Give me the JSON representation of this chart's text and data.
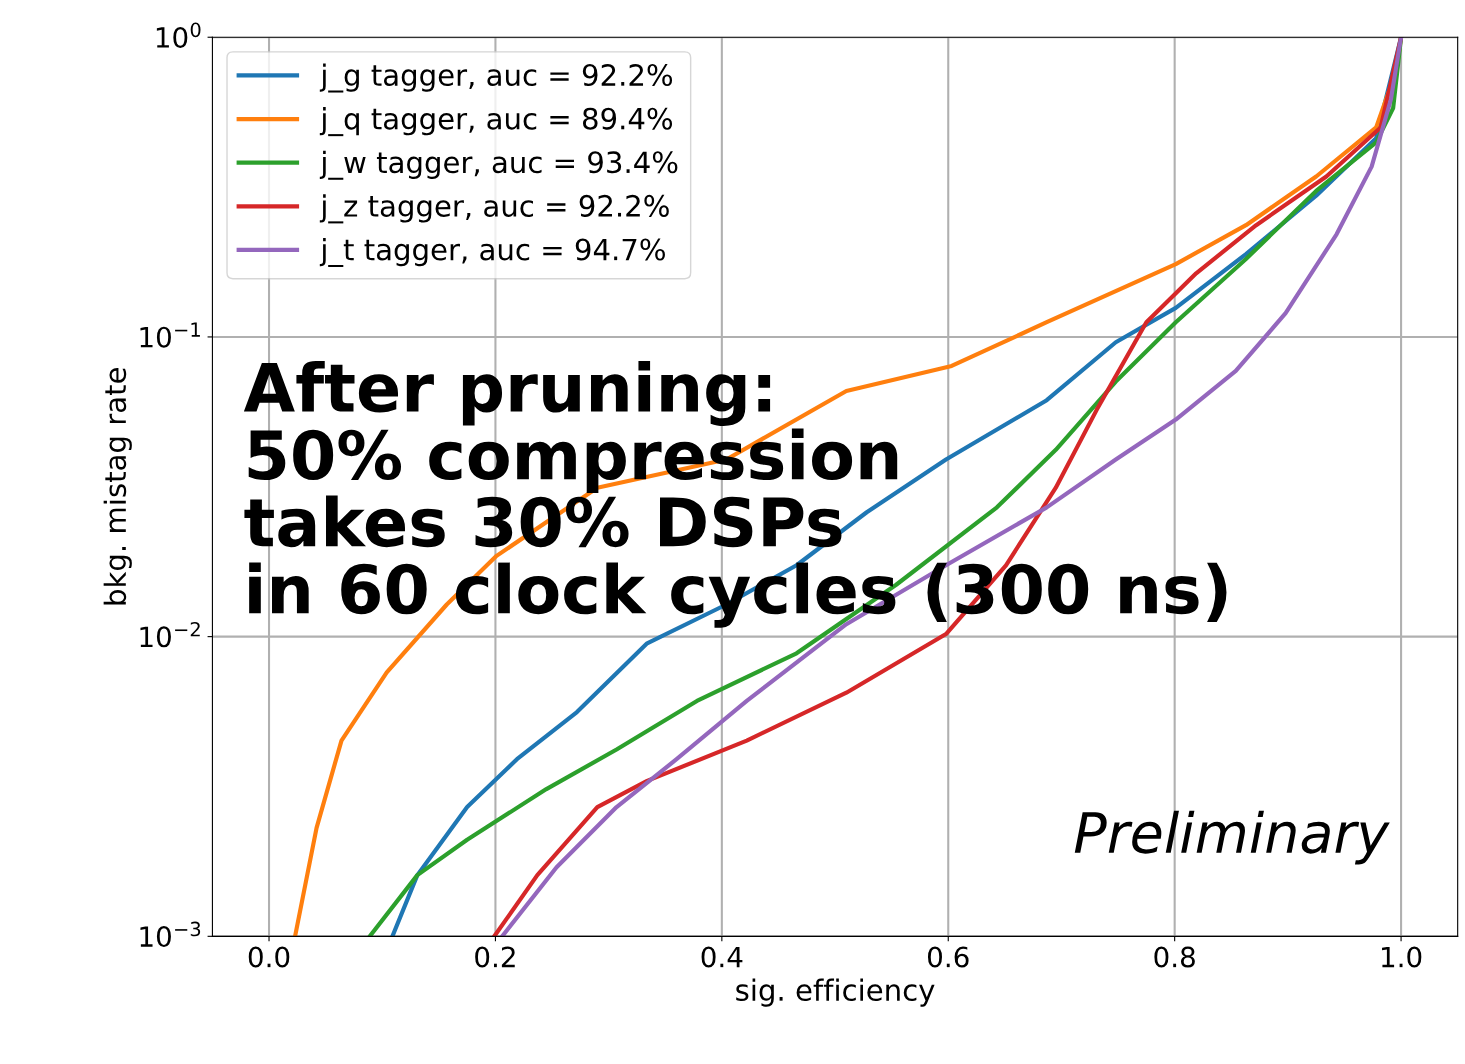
{
  "chart_data": {
    "type": "line",
    "xlabel": "sig. efficiency",
    "ylabel": "bkg. mistag rate",
    "log": "y",
    "xlim": [
      -0.05,
      1.05
    ],
    "xticks": [
      {
        "value": 0.0,
        "label": "0.0"
      },
      {
        "value": 0.2,
        "label": "0.2"
      },
      {
        "value": 0.4,
        "label": "0.4"
      },
      {
        "value": 0.6,
        "label": "0.6"
      },
      {
        "value": 0.8,
        "label": "0.8"
      },
      {
        "value": 1.0,
        "label": "1.0"
      }
    ],
    "ylim": [
      0.001,
      1
    ],
    "yticks": [
      {
        "value": 0.001,
        "label": "10$^{−3}$"
      },
      {
        "value": 0.01,
        "label": "10$^{−2}$"
      },
      {
        "value": 0.1,
        "label": "10$^{−1}$"
      },
      {
        "value": 1,
        "label": "10$^{0}$"
      }
    ],
    "grid": true,
    "legend": "top left",
    "series": [
      {
        "name": "j_g tagger, auc = 92.2%",
        "color": "#1f77b4",
        "x": [
          0.109,
          0.131,
          0.175,
          0.219,
          0.272,
          0.334,
          0.404,
          0.466,
          0.528,
          0.598,
          0.687,
          0.748,
          0.801,
          0.863,
          0.925,
          0.978,
          1.0
        ],
        "values": [
          0.001,
          0.0016,
          0.0027,
          0.0039,
          0.0056,
          0.0095,
          0.0128,
          0.0173,
          0.026,
          0.039,
          0.0615,
          0.096,
          0.125,
          0.189,
          0.296,
          0.46,
          1.0
        ]
      },
      {
        "name": "j_q tagger, auc = 89.4%",
        "color": "#ff7f0e",
        "x": [
          0.023,
          0.042,
          0.064,
          0.104,
          0.157,
          0.201,
          0.29,
          0.404,
          0.51,
          0.603,
          0.687,
          0.801,
          0.863,
          0.925,
          0.978,
          0.996,
          1.0
        ],
        "values": [
          0.001,
          0.0023,
          0.0045,
          0.0076,
          0.0128,
          0.0186,
          0.0314,
          0.039,
          0.066,
          0.08,
          0.112,
          0.175,
          0.236,
          0.343,
          0.5,
          0.78,
          1.0
        ]
      },
      {
        "name": "j_w tagger, auc = 93.4%",
        "color": "#2ca02c",
        "x": [
          0.089,
          0.131,
          0.175,
          0.245,
          0.307,
          0.378,
          0.466,
          0.554,
          0.643,
          0.695,
          0.748,
          0.801,
          0.863,
          0.925,
          0.978,
          0.993,
          1.0
        ],
        "values": [
          0.001,
          0.0016,
          0.0021,
          0.0031,
          0.0042,
          0.0061,
          0.0088,
          0.0149,
          0.027,
          0.042,
          0.071,
          0.112,
          0.182,
          0.307,
          0.446,
          0.58,
          1.0
        ]
      },
      {
        "name": "j_z tagger, auc = 92.2%",
        "color": "#d62728",
        "x": [
          0.199,
          0.237,
          0.29,
          0.334,
          0.422,
          0.51,
          0.598,
          0.651,
          0.695,
          0.731,
          0.775,
          0.819,
          0.872,
          0.934,
          0.982,
          1.0
        ],
        "values": [
          0.001,
          0.0016,
          0.0027,
          0.0033,
          0.0045,
          0.0065,
          0.0102,
          0.0173,
          0.0314,
          0.057,
          0.112,
          0.163,
          0.236,
          0.343,
          0.5,
          1.0
        ]
      },
      {
        "name": "j_t tagger, auc = 94.7%",
        "color": "#9467bd",
        "x": [
          0.206,
          0.254,
          0.307,
          0.36,
          0.422,
          0.51,
          0.598,
          0.687,
          0.748,
          0.801,
          0.854,
          0.898,
          0.943,
          0.974,
          0.991,
          1.0
        ],
        "values": [
          0.001,
          0.0017,
          0.0027,
          0.0039,
          0.0061,
          0.011,
          0.0173,
          0.027,
          0.039,
          0.053,
          0.077,
          0.12,
          0.22,
          0.37,
          0.62,
          1.0
        ]
      }
    ],
    "annotations": [
      "After pruning:\n50% compression\ntakes 30% DSPs\nin 60 clock cycles (300 ns)",
      "Preliminary"
    ]
  }
}
